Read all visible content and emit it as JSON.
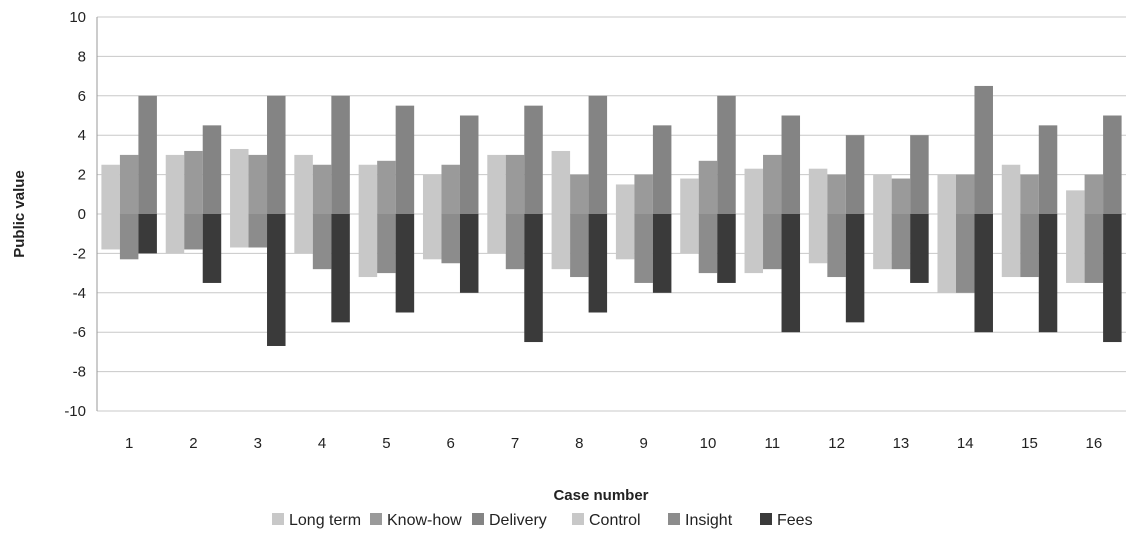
{
  "chart_data": {
    "type": "bar",
    "xlabel": "Case number",
    "ylabel": "Public value",
    "ylim": [
      -10,
      10
    ],
    "ytick_step": 2,
    "grid": true,
    "legend_position": "bottom",
    "categories": [
      "1",
      "2",
      "3",
      "4",
      "5",
      "6",
      "7",
      "8",
      "9",
      "10",
      "11",
      "12",
      "13",
      "14",
      "15",
      "16"
    ],
    "series": [
      {
        "name": "Long term",
        "color": "#c8c8c8",
        "values": [
          2.5,
          3.0,
          3.3,
          3.0,
          2.5,
          2.0,
          3.0,
          3.2,
          1.5,
          1.8,
          2.3,
          2.3,
          2.0,
          2.0,
          2.5,
          1.2
        ]
      },
      {
        "name": "Know-how",
        "color": "#9a9a9a",
        "values": [
          3.0,
          3.2,
          3.0,
          2.5,
          2.7,
          2.5,
          3.0,
          2.0,
          2.0,
          2.7,
          3.0,
          2.0,
          1.8,
          2.0,
          2.0,
          2.0
        ]
      },
      {
        "name": "Delivery",
        "color": "#848484",
        "values": [
          6.0,
          4.5,
          6.0,
          6.0,
          5.5,
          5.0,
          5.5,
          6.0,
          4.5,
          6.0,
          5.0,
          4.0,
          4.0,
          6.5,
          4.5,
          5.0
        ]
      },
      {
        "name": "Control",
        "color": "#c8c8c8",
        "values": [
          -1.8,
          -2.0,
          -1.7,
          -2.0,
          -3.2,
          -2.3,
          -2.0,
          -2.8,
          -2.3,
          -2.0,
          -3.0,
          -2.5,
          -2.8,
          -4.0,
          -3.2,
          -3.5
        ]
      },
      {
        "name": "Insight",
        "color": "#8c8c8c",
        "values": [
          -2.3,
          -1.8,
          -1.7,
          -2.8,
          -3.0,
          -2.5,
          -2.8,
          -3.2,
          -3.5,
          -3.0,
          -2.8,
          -3.2,
          -2.8,
          -4.0,
          -3.2,
          -3.5
        ]
      },
      {
        "name": "Fees",
        "color": "#3a3a3a",
        "values": [
          -2.0,
          -3.5,
          -6.7,
          -5.5,
          -5.0,
          -4.0,
          -6.5,
          -5.0,
          -4.0,
          -3.5,
          -6.0,
          -5.5,
          -3.5,
          -6.0,
          -6.0,
          -6.5
        ]
      }
    ]
  }
}
